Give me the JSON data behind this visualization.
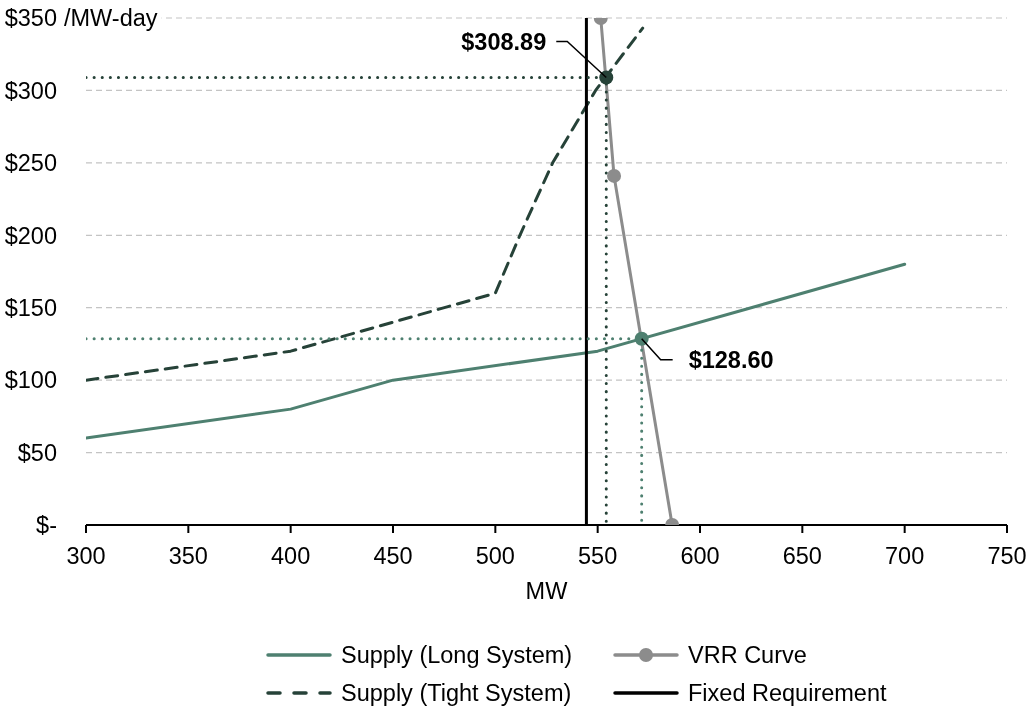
{
  "chart_data": {
    "type": "line",
    "xlabel": "MW",
    "ylabel": "/MW-day",
    "xlim": [
      300,
      750
    ],
    "xticks": [
      300,
      350,
      400,
      450,
      500,
      550,
      600,
      650,
      700,
      750
    ],
    "ylim": [
      0,
      350
    ],
    "yticks": [
      {
        "value": 0,
        "label": "$-"
      },
      {
        "value": 50,
        "label": "$50"
      },
      {
        "value": 100,
        "label": "$100"
      },
      {
        "value": 150,
        "label": "$150"
      },
      {
        "value": 200,
        "label": "$200"
      },
      {
        "value": 250,
        "label": "$250"
      },
      {
        "value": 300,
        "label": "$300"
      },
      {
        "value": 350,
        "label": "$350"
      }
    ],
    "grid": "y",
    "legend": "bottom",
    "series": [
      {
        "name": "Supply (Long System)",
        "color": "#4e8070",
        "x": [
          300,
          400,
          450,
          550,
          700
        ],
        "values": [
          60,
          80,
          100,
          120,
          180
        ]
      },
      {
        "name": "VRR Curve",
        "color": "#8c8c8c",
        "x": [
          551.5,
          558,
          586.4
        ],
        "values": [
          350,
          241,
          0
        ],
        "marker": "circle"
      },
      {
        "name": "Supply (Tight System)",
        "color": "#264238",
        "x": [
          300,
          400,
          450,
          500,
          512,
          528,
          549,
          572
        ],
        "values": [
          100,
          120,
          140,
          160,
          200,
          250,
          300,
          343
        ],
        "line_style": "dashed"
      },
      {
        "name": "Fixed Requirement",
        "color": "#000000",
        "x": [
          544.5,
          544.5
        ],
        "values": [
          0,
          350
        ]
      },
      {
        "color": "#264238",
        "x": [
          300,
          554.2,
          554.2
        ],
        "values": [
          308.89,
          308.89,
          0
        ],
        "line_style": "dotted"
      },
      {
        "color": "#4e8070",
        "x": [
          300,
          571.5,
          571.5
        ],
        "values": [
          128.6,
          128.6,
          0
        ],
        "line_style": "dotted"
      },
      {
        "type": "scatter",
        "x": [
          554.2,
          571.5
        ],
        "values": [
          308.89,
          128.6
        ],
        "colors": [
          "#264238",
          "#4e8070"
        ],
        "value_labels": [
          "$308.89",
          "$128.60"
        ]
      }
    ]
  }
}
